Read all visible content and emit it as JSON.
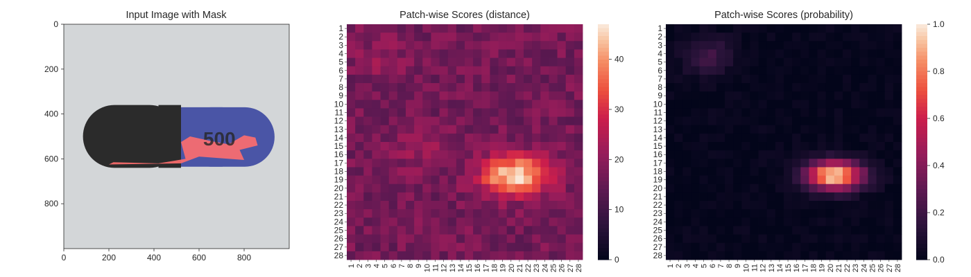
{
  "chart_data": [
    {
      "type": "image",
      "title": "Input Image with Mask",
      "xlim": [
        0,
        1000
      ],
      "ylim": [
        1000,
        0
      ],
      "xticks": [
        0,
        200,
        400,
        600,
        800
      ],
      "yticks": [
        0,
        200,
        400,
        600,
        800
      ],
      "colors": {
        "background": "#d3d6d8",
        "capsule_dark": "#2b2b2b",
        "capsule_blue": "#4a55a6",
        "mask": "#ff6e6e",
        "imprint": "#9aa0c4"
      },
      "imprint_text": "500"
    },
    {
      "type": "heatmap",
      "title": "Patch-wise Scores (distance)",
      "rows": 28,
      "cols": 28,
      "row_labels_start": 1,
      "col_labels_start": 1,
      "colorbar": {
        "min": 0,
        "max": 47,
        "ticks": [
          0,
          10,
          20,
          30,
          40
        ]
      },
      "colormap": "rocket",
      "pattern": {
        "base": 17,
        "noise": 4,
        "hotspot_center": [
          17.5,
          19.5
        ],
        "hotspot_peak": 47,
        "sigma": [
          1.6,
          2.8
        ],
        "secondary": [
          {
            "center": [
              3.5,
              3.5
            ],
            "peak": 4
          },
          {
            "center": [
              14.5,
              8
            ],
            "peak": 5
          }
        ]
      }
    },
    {
      "type": "heatmap",
      "title": "Patch-wise Scores (probability)",
      "rows": 28,
      "cols": 28,
      "row_labels_start": 1,
      "col_labels_start": 1,
      "colorbar": {
        "min": 0.0,
        "max": 1.0,
        "ticks": [
          "0.0",
          "0.2",
          "0.4",
          "0.6",
          "0.8",
          "1.0"
        ]
      },
      "colormap": "rocket",
      "pattern": {
        "base": 0.01,
        "noise": 0.03,
        "hotspot_center": [
          17.5,
          19.5
        ],
        "hotspot_peak": 1.0,
        "sigma": [
          1.2,
          2.4
        ],
        "secondary": [
          {
            "center": [
              3.3,
              4.5
            ],
            "peak": 0.2
          }
        ]
      }
    }
  ]
}
